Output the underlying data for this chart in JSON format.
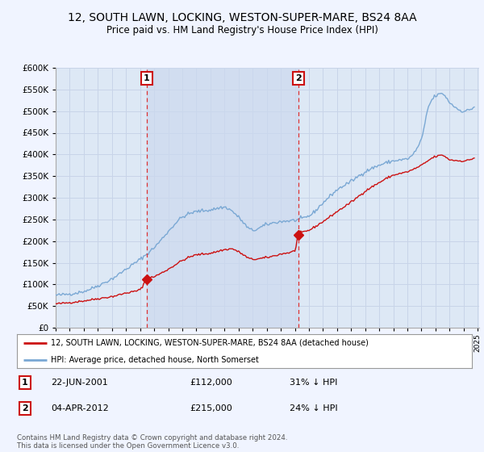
{
  "title": "12, SOUTH LAWN, LOCKING, WESTON-SUPER-MARE, BS24 8AA",
  "subtitle": "Price paid vs. HM Land Registry's House Price Index (HPI)",
  "title_fontsize": 10,
  "subtitle_fontsize": 8.5,
  "background_color": "#f0f4ff",
  "plot_background": "#dde8f5",
  "grid_color": "#c8d4e8",
  "highlight_color": "#ccd9ee",
  "ylim": [
    0,
    600000
  ],
  "yticks": [
    0,
    50000,
    100000,
    150000,
    200000,
    250000,
    300000,
    350000,
    400000,
    450000,
    500000,
    550000,
    600000
  ],
  "hpi_color": "#7aa8d4",
  "price_color": "#cc1111",
  "vline_color": "#dd3333",
  "annotation_border": "#cc1111",
  "purchase1_year": 2001.47,
  "purchase1_price": 112000,
  "purchase2_year": 2012.25,
  "purchase2_price": 215000,
  "legend_label_price": "12, SOUTH LAWN, LOCKING, WESTON-SUPER-MARE, BS24 8AA (detached house)",
  "legend_label_hpi": "HPI: Average price, detached house, North Somerset",
  "note1_date": "22-JUN-2001",
  "note1_price": "£112,000",
  "note1_pct": "31% ↓ HPI",
  "note2_date": "04-APR-2012",
  "note2_price": "£215,000",
  "note2_pct": "24% ↓ HPI",
  "footer": "Contains HM Land Registry data © Crown copyright and database right 2024.\nThis data is licensed under the Open Government Licence v3.0."
}
